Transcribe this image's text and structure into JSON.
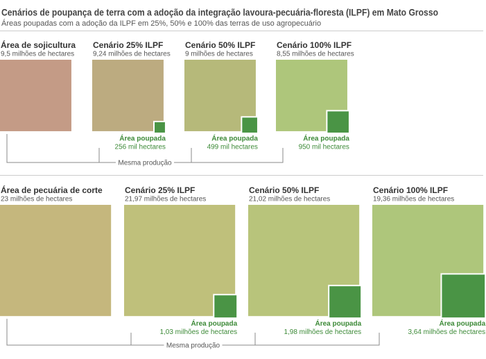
{
  "title": "Cenários de poupança de terra com a adoção da integração lavoura-pecuária-floresta (ILPF) em Mato Grosso",
  "subtitle": "Áreas poupadas com a adoção da ILPF em 25%, 50% e 100% das terras de uso agropecuário",
  "chart_data": [
    {
      "type": "area-squares",
      "categories": [
        "Área de sojicultura",
        "Cenário 25% ILPF",
        "Cenário 50% ILPF",
        "Cenário 100% ILPF"
      ],
      "values": [
        9500000,
        9240000,
        9000000,
        8550000
      ],
      "value_labels": [
        "9,5 milhões de hectares",
        "9,24 milhões de hectares",
        "9 milhões de hectares",
        "8,55 milhões de hectares"
      ],
      "colors": [
        "#c49b86",
        "#bcab80",
        "#b6b97a",
        "#aec67b"
      ],
      "saved_title": "Área poupada",
      "saved_values": [
        null,
        256000,
        499000,
        950000
      ],
      "saved_labels": [
        null,
        "256 mil hectares",
        "499 mil hectares",
        "950 mil hectares"
      ],
      "saved_color": "#4a9445",
      "note": "Mesma produção"
    },
    {
      "type": "area-squares",
      "categories": [
        "Área de pecuária de corte",
        "Cenário 25% ILPF",
        "Cenário 50% ILPF",
        "Cenário 100% ILPF"
      ],
      "values": [
        23000000,
        21970000,
        21020000,
        19360000
      ],
      "value_labels": [
        "23 milhões de hectares",
        "21,97 milhões de hectares",
        "21,02 milhões de hectares",
        "19,36 milhões de hectares"
      ],
      "colors": [
        "#c5b77d",
        "#bfc07b",
        "#b8c47b",
        "#aec67b"
      ],
      "saved_title": "Área poupada",
      "saved_values": [
        null,
        1030000,
        1980000,
        3640000
      ],
      "saved_labels": [
        null,
        "1,03 milhões de hectares",
        "1,98 milhões de hectares",
        "3,64 milhões de hectares"
      ],
      "saved_color": "#4a9445",
      "note": "Mesma produção"
    }
  ]
}
